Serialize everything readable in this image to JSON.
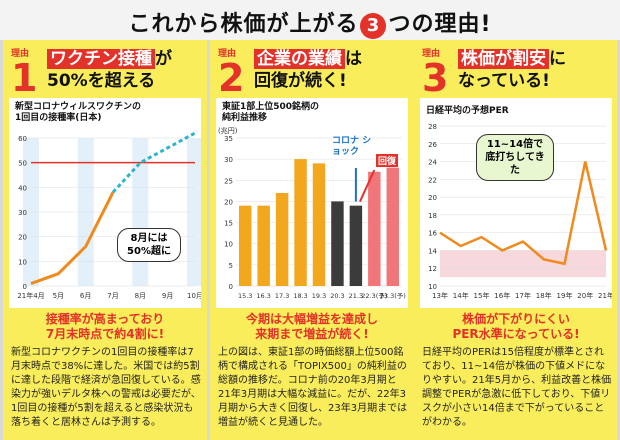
{
  "title": {
    "prefix": "これから株価が上がる",
    "number": "3",
    "suffix": "つの理由!"
  },
  "panels": [
    {
      "badge_label": "理由",
      "badge_number": "1",
      "headline_hl": "ワクチン接種",
      "headline_rest1": "が",
      "headline_line2": "50%を超える",
      "legend_line1": "新型コロナウィルスワクチンの",
      "legend_line2": "1回目の接種率(日本)",
      "callout": "8月には 50%超に",
      "summary_line1": "接種率が高まっており",
      "summary_line2": "7月末時点で約4割に!",
      "body": "新型コロナワクチンの1回目の接種率は7月末時点で38%に達した。米国では約5割に達した段階で経済が急回復している。感染力が強いデルタ株への警戒は必要だが、1回目の接種が5割を超えると感染状況も落ち着くと居林さんは予測する。"
    },
    {
      "badge_label": "理由",
      "badge_number": "2",
      "headline_hl": "企業の業績",
      "headline_rest1": "は",
      "headline_line2": "回復が続く!",
      "legend_line1": "東証1部上位500銘柄の",
      "legend_line2": "純利益推移",
      "unit": "(兆円)",
      "annot_corona": "コロナ ショック",
      "annot_recover": "回復",
      "summary_line1": "今期は大幅増益を達成し",
      "summary_line2": "来期まで増益が続く!",
      "body": "上の図は、東証1部の時価総額上位500銘柄で構成される「TOPIX500」の純利益の総額の推移だ。コロナ前の20年3月期と21年3月期は大幅な減益に。だが、22年3月期から大きく回復し、23年3月期までは増益が続くと見通した。"
    },
    {
      "badge_label": "理由",
      "badge_number": "3",
      "headline_hl": "株価が割安",
      "headline_rest1": "に",
      "headline_line2": "なっている!",
      "legend_line1": "日経平均の予想PER",
      "callout": "11~14倍で 底打ちしてきた",
      "summary_line1": "株価が下がりにくい",
      "summary_line2": "PER水準になっている!",
      "body": "日経平均のPERは15倍程度が標準とされており、11~14倍が株価の下値メドになりやすい。21年5月から、利益改善と株価調整でPERが急激に低下しており、下値リスクが小さい14倍まで下がっていることがわかる。"
    }
  ],
  "chart_data": [
    {
      "type": "line",
      "x": [
        "21年4月",
        "5月",
        "6月",
        "7月",
        "8月",
        "9月",
        "10月"
      ],
      "series": [
        {
          "values": [
            1,
            5,
            16,
            38,
            50,
            56,
            62
          ]
        }
      ],
      "reference_line": 50,
      "ylim": [
        0,
        60
      ],
      "yticks": [
        0,
        10,
        20,
        30,
        40,
        50,
        60
      ]
    },
    {
      "type": "bar",
      "categories": [
        "15.3",
        "16.3",
        "17.3",
        "18.3",
        "19.3",
        "20.3",
        "21.3",
        "22.3(予)",
        "23.3(予)"
      ],
      "values": [
        19,
        19,
        22,
        30,
        29,
        20,
        19,
        27,
        28
      ],
      "ylim": [
        0,
        35
      ],
      "yticks": [
        0,
        5,
        10,
        15,
        20,
        25,
        30,
        35
      ]
    },
    {
      "type": "line",
      "x": [
        "13年",
        "14年",
        "15年",
        "16年",
        "17年",
        "18年",
        "19年",
        "20年",
        "21年"
      ],
      "series": [
        {
          "values": [
            16,
            14.5,
            15.5,
            14,
            15,
            13,
            12.5,
            24,
            14
          ]
        }
      ],
      "ylim": [
        10,
        28
      ],
      "yticks": [
        10,
        12,
        14,
        16,
        18,
        20,
        22,
        24,
        26,
        28
      ]
    }
  ]
}
